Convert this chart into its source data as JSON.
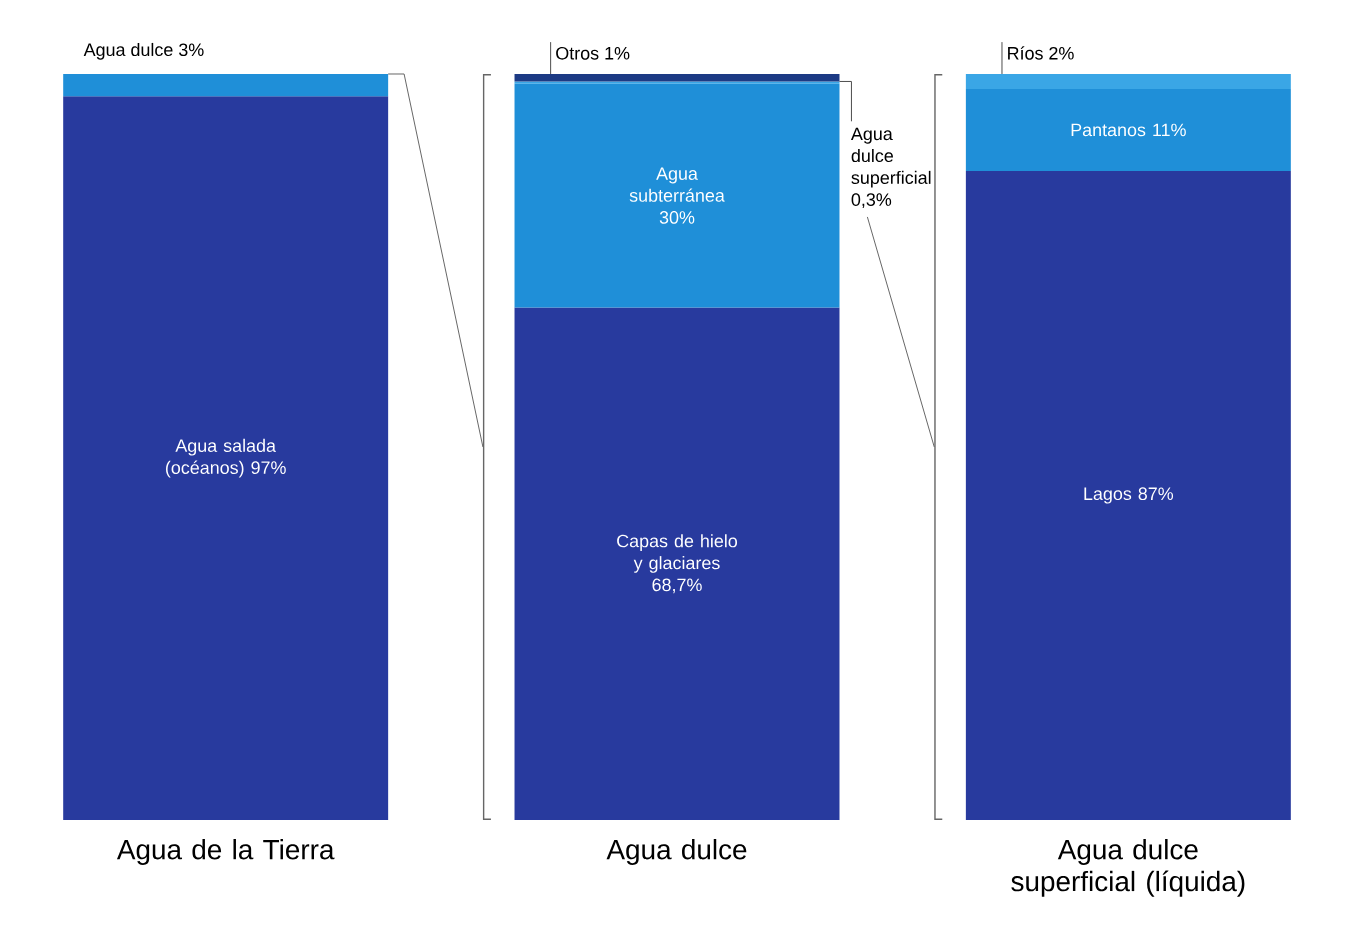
{
  "chart_data": {
    "type": "bar",
    "stacked": true,
    "categories": [
      "Agua de la Tierra",
      "Agua dulce",
      "Agua dulce superficial (líquida)"
    ],
    "ylim": [
      0,
      100
    ],
    "series": [
      {
        "color": "#283a9e",
        "values": [
          97,
          68.7,
          87
        ],
        "value_labels": [
          "Agua salada (océanos) 97%",
          "Capas de hielo y glaciares 68,7%",
          "Lagos 87%"
        ]
      },
      {
        "color": "#1f8fd8",
        "values": [
          3,
          30,
          11
        ],
        "value_labels": [
          "Agua dulce 3%",
          "Agua subterránea 30%",
          "Pantanos 11%"
        ]
      },
      {
        "color": "#3aa6e6",
        "values": [
          null,
          0.3,
          2
        ],
        "value_labels": [
          null,
          "Agua dulce superficial 0,3%",
          "Ríos 2%"
        ]
      },
      {
        "color": "#1c3a84",
        "values": [
          null,
          1,
          null
        ],
        "value_labels": [
          null,
          "Otros 1%",
          null
        ]
      }
    ]
  }
}
